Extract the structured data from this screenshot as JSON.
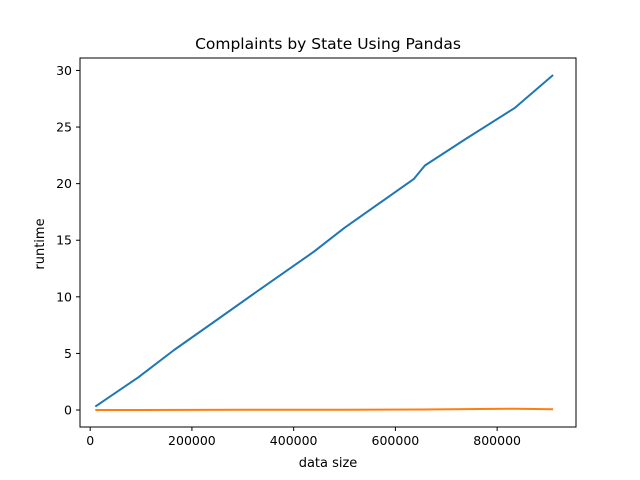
{
  "chart_data": {
    "type": "line",
    "title": "Complaints by State Using Pandas",
    "xlabel": "data size",
    "ylabel": "runtime",
    "xlim": [
      -20000,
      955000
    ],
    "ylim": [
      -1.5,
      31.1
    ],
    "grid": false,
    "legend": "none",
    "x_ticks": [
      0,
      200000,
      400000,
      600000,
      800000
    ],
    "x_tick_labels": [
      "0",
      "200000",
      "400000",
      "600000",
      "800000"
    ],
    "y_ticks": [
      0,
      5,
      10,
      15,
      20,
      25,
      30
    ],
    "y_tick_labels": [
      "0",
      "5",
      "10",
      "15",
      "20",
      "25",
      "30"
    ],
    "series": [
      {
        "color": "#1f77b4",
        "points": [
          [
            10000,
            0.3
          ],
          [
            95000,
            2.9
          ],
          [
            165000,
            5.3
          ],
          [
            250000,
            8.0
          ],
          [
            335000,
            10.7
          ],
          [
            440000,
            14.0
          ],
          [
            500000,
            16.1
          ],
          [
            636000,
            20.4
          ],
          [
            658000,
            21.6
          ],
          [
            740000,
            24.0
          ],
          [
            835000,
            26.7
          ],
          [
            910000,
            29.6
          ]
        ]
      },
      {
        "color": "#ff7f0e",
        "points": [
          [
            10000,
            0.0
          ],
          [
            100000,
            0.0
          ],
          [
            300000,
            0.02
          ],
          [
            500000,
            0.03
          ],
          [
            650000,
            0.05
          ],
          [
            835000,
            0.12
          ],
          [
            910000,
            0.06
          ]
        ]
      }
    ]
  }
}
